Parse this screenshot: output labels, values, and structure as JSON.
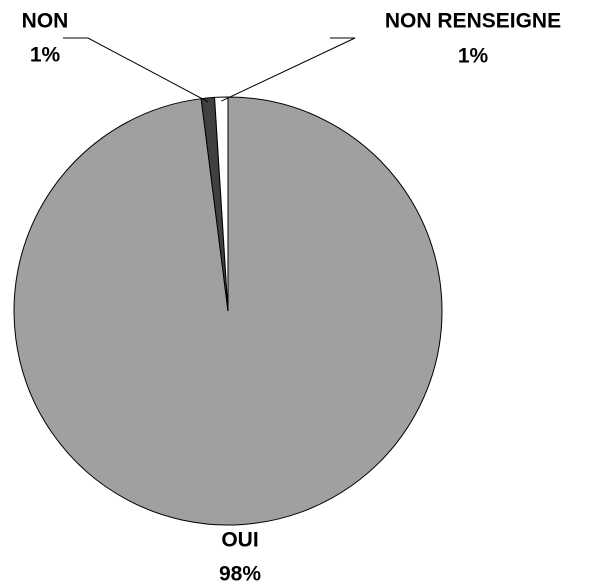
{
  "chart_data": {
    "type": "pie",
    "categories": [
      "OUI",
      "NON",
      "NON RENSEIGNE"
    ],
    "values": [
      98,
      1,
      1
    ],
    "value_labels": [
      "98%",
      "1%",
      "1%"
    ],
    "colors": [
      "#a0a0a0",
      "#404040",
      "#ffffff"
    ]
  }
}
